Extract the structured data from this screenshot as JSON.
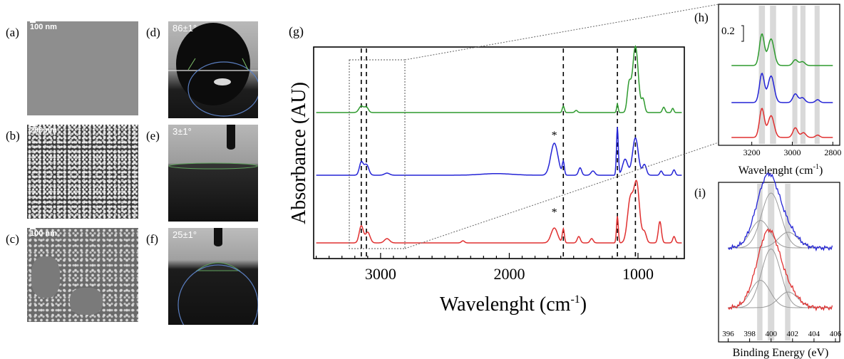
{
  "panels": {
    "a": {
      "label": "(a)",
      "scale": "100 nm"
    },
    "b": {
      "label": "(b)",
      "scale": "200 nm"
    },
    "c": {
      "label": "(c)",
      "scale": "100 nm"
    },
    "d": {
      "label": "(d)",
      "angle": "86±1°"
    },
    "e": {
      "label": "(e)",
      "angle": "3±1°"
    },
    "f": {
      "label": "(f)",
      "angle": "25±1°"
    }
  },
  "colors": {
    "green": "#2e9a2e",
    "blue": "#2424d6",
    "red": "#e03030",
    "shade": "#d9d9d9"
  },
  "chart_data": [
    {
      "panel": "(g)",
      "type": "line",
      "xlabel": "Wavelenght (cm",
      "xlabel_sup": "-1",
      "xlabel_close": ")",
      "ylabel": "Absorbance (AU)",
      "xlim": [
        3520,
        640
      ],
      "xticks": [
        3000,
        2000,
        1000
      ],
      "dashed_lines": [
        3150,
        3110,
        1580,
        1160,
        1020
      ],
      "marker": "*",
      "series": [
        {
          "color": "green",
          "baseline": 0.05,
          "peaks": [
            [
              3150,
              0.06,
              18
            ],
            [
              3110,
              0.05,
              15
            ],
            [
              1580,
              0.06,
              8
            ],
            [
              1480,
              0.02,
              10
            ],
            [
              1160,
              0.08,
              6
            ],
            [
              1070,
              0.25,
              14
            ],
            [
              1020,
              0.62,
              22
            ],
            [
              960,
              0.12,
              12
            ],
            [
              800,
              0.05,
              10
            ],
            [
              730,
              0.04,
              8
            ]
          ]
        },
        {
          "color": "blue",
          "baseline": 0.05,
          "peaks": [
            [
              3150,
              0.12,
              15
            ],
            [
              3110,
              0.1,
              18
            ],
            [
              2950,
              0.02,
              20
            ],
            [
              2100,
              0.015,
              120
            ],
            [
              1650,
              0.3,
              28
            ],
            [
              1580,
              0.12,
              8
            ],
            [
              1450,
              0.07,
              12
            ],
            [
              1350,
              0.04,
              15
            ],
            [
              1160,
              0.45,
              7
            ],
            [
              1100,
              0.15,
              20
            ],
            [
              1020,
              0.35,
              22
            ],
            [
              950,
              0.1,
              15
            ],
            [
              820,
              0.04,
              10
            ],
            [
              720,
              0.05,
              10
            ]
          ]
        },
        {
          "color": "red",
          "baseline": 0.02,
          "peaks": [
            [
              3150,
              0.16,
              16
            ],
            [
              3100,
              0.1,
              18
            ],
            [
              2950,
              0.04,
              20
            ],
            [
              2360,
              0.02,
              12
            ],
            [
              1650,
              0.14,
              25
            ],
            [
              1580,
              0.13,
              8
            ],
            [
              1460,
              0.06,
              12
            ],
            [
              1360,
              0.04,
              12
            ],
            [
              1160,
              0.25,
              7
            ],
            [
              1060,
              0.4,
              22
            ],
            [
              1010,
              0.55,
              22
            ],
            [
              950,
              0.1,
              15
            ],
            [
              830,
              0.2,
              12
            ],
            [
              720,
              0.06,
              10
            ]
          ]
        }
      ]
    },
    {
      "panel": "(h)",
      "type": "line",
      "xlabel": "Wavelenght (cm",
      "xlabel_sup": "-1",
      "xlabel_close": ")",
      "scale_label": "0.2",
      "xlim": [
        3350,
        2780
      ],
      "xticks": [
        3200,
        3000,
        2800
      ],
      "shaded_bands": [
        [
          3165,
          3135
        ],
        [
          3110,
          3080
        ],
        [
          3000,
          2975
        ],
        [
          2960,
          2935
        ],
        [
          2890,
          2865
        ]
      ],
      "series": [
        {
          "color": "green",
          "peaks": [
            [
              3150,
              0.65,
              12
            ],
            [
              3105,
              0.55,
              15
            ],
            [
              2985,
              0.12,
              12
            ],
            [
              2950,
              0.08,
              12
            ]
          ]
        },
        {
          "color": "blue",
          "peaks": [
            [
              3150,
              0.6,
              12
            ],
            [
              3105,
              0.55,
              15
            ],
            [
              2985,
              0.18,
              12
            ],
            [
              2950,
              0.1,
              12
            ],
            [
              2875,
              0.06,
              10
            ]
          ]
        },
        {
          "color": "red",
          "peaks": [
            [
              3150,
              0.6,
              12
            ],
            [
              3105,
              0.45,
              15
            ],
            [
              2985,
              0.2,
              12
            ],
            [
              2945,
              0.1,
              12
            ],
            [
              2875,
              0.05,
              10
            ]
          ]
        }
      ]
    },
    {
      "panel": "(i)",
      "type": "line",
      "xlabel": "Binding Energy (eV)",
      "xlim": [
        395.5,
        406
      ],
      "xticks": [
        396,
        398,
        400,
        402,
        404,
        406
      ],
      "shaded_bands": [
        [
          398.7,
          399.2
        ],
        [
          399.7,
          400.3
        ],
        [
          401.3,
          401.8
        ]
      ],
      "series": [
        {
          "color": "blue",
          "components": [
            [
              399.0,
              0.35,
              0.9
            ],
            [
              400.0,
              0.7,
              0.9
            ],
            [
              401.6,
              0.2,
              0.9
            ]
          ]
        },
        {
          "color": "red",
          "components": [
            [
              399.0,
              0.35,
              0.9
            ],
            [
              400.0,
              0.75,
              0.9
            ],
            [
              401.6,
              0.2,
              0.9
            ]
          ]
        }
      ]
    }
  ]
}
